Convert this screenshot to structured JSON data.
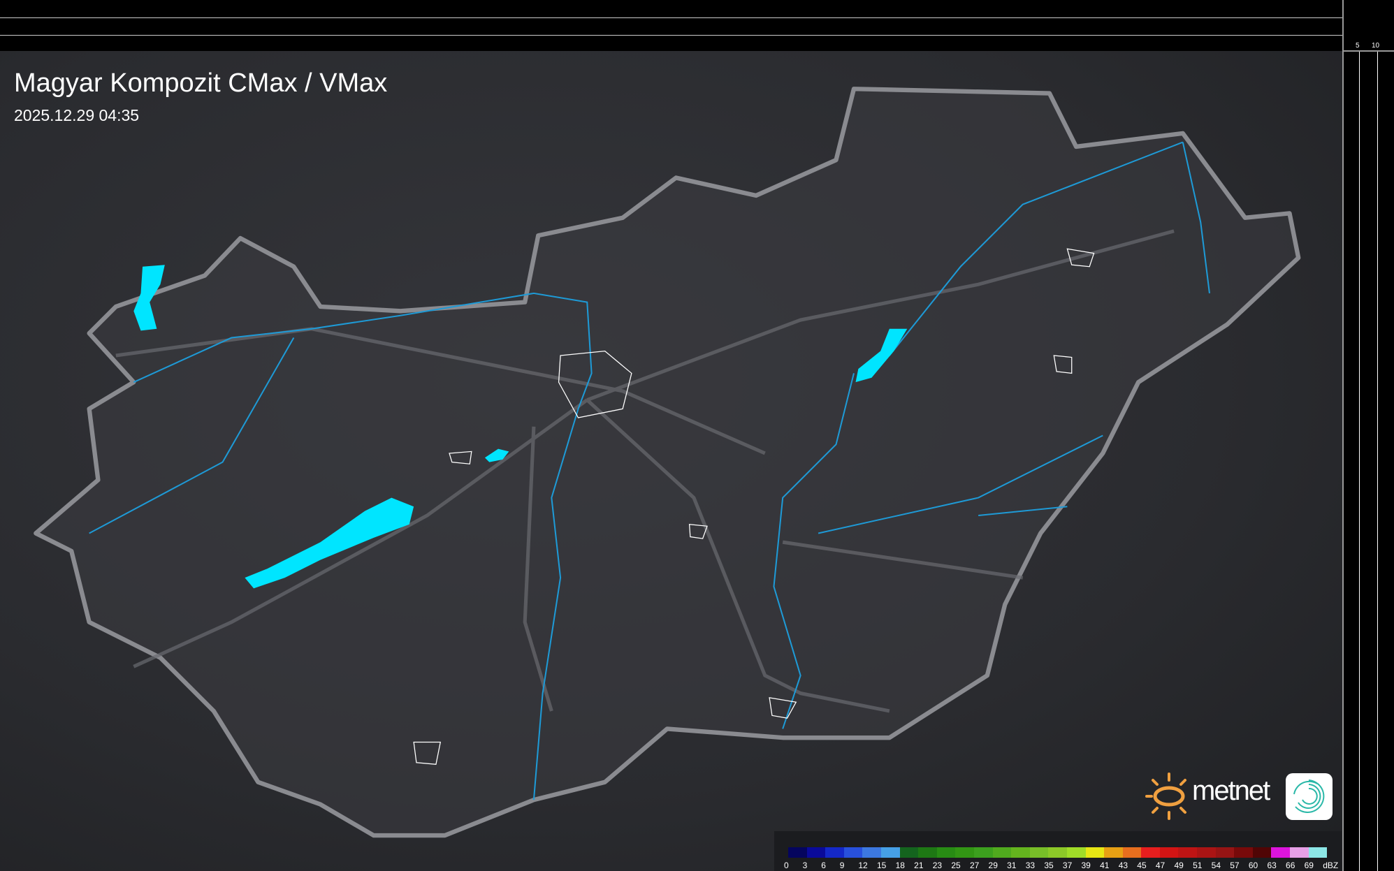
{
  "header": {
    "title": "Magyar Kompozit CMax / VMax",
    "timestamp": "2025.12.29 04:35"
  },
  "scale_ticks": {
    "vertical": [
      "10",
      "5"
    ],
    "horizontal": [
      "5",
      "10"
    ]
  },
  "legend": {
    "unit": "dBZ",
    "values": [
      "0",
      "3",
      "6",
      "9",
      "12",
      "15",
      "18",
      "21",
      "23",
      "25",
      "27",
      "29",
      "31",
      "33",
      "35",
      "37",
      "39",
      "41",
      "43",
      "45",
      "47",
      "49",
      "51",
      "54",
      "57",
      "60",
      "63",
      "66",
      "69"
    ],
    "colors": [
      "#05055e",
      "#0a0a9a",
      "#1428c8",
      "#2850dc",
      "#3c78e0",
      "#46a0e6",
      "#14641e",
      "#1e7814",
      "#288c14",
      "#329614",
      "#3ca01e",
      "#50aa1e",
      "#64b41e",
      "#78be28",
      "#8cc828",
      "#a0dc28",
      "#e6e614",
      "#e6a014",
      "#e66e1e",
      "#e61e1e",
      "#d21414",
      "#be1414",
      "#aa1414",
      "#961414",
      "#780a0a",
      "#500505",
      "#dc14dc",
      "#e6a0e6",
      "#8ce6e6"
    ]
  },
  "brand": {
    "name": "metnet",
    "sun_color": "#f0a040",
    "icon_color": "#2ab8a8"
  },
  "map": {
    "country_outline_color": "#8a8b90",
    "river_color": "#1e9ad6",
    "lake_color": "#00e5ff",
    "settlement_outline_color": "#ffffff"
  }
}
